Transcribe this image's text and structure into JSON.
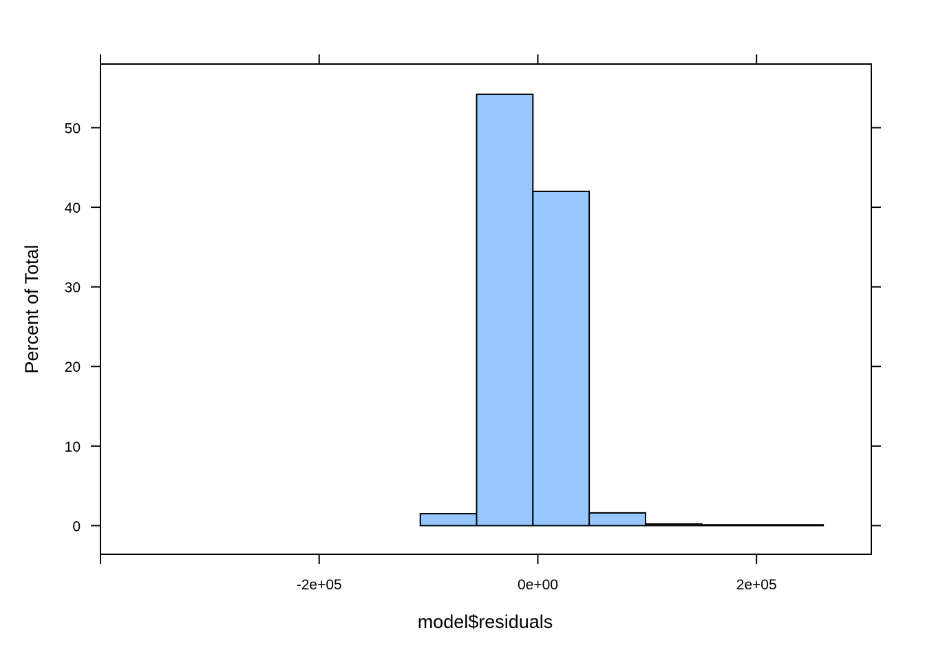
{
  "chart_data": {
    "type": "bar",
    "title": "",
    "xlabel": "model$residuals",
    "ylabel": "Percent of Total",
    "xlim": [
      -400000,
      305000
    ],
    "ylim": [
      -3.6,
      58
    ],
    "x_ticks": [
      {
        "value": -400000,
        "label": ""
      },
      {
        "value": -200000,
        "label": "-2e+05"
      },
      {
        "value": 0,
        "label": "0e+00"
      },
      {
        "value": 200000,
        "label": "2e+05"
      }
    ],
    "y_ticks": [
      {
        "value": 0,
        "label": "0"
      },
      {
        "value": 10,
        "label": "10"
      },
      {
        "value": 20,
        "label": "20"
      },
      {
        "value": 30,
        "label": "30"
      },
      {
        "value": 40,
        "label": "40"
      },
      {
        "value": 50,
        "label": "50"
      }
    ],
    "bar_fill": "#96c7ff",
    "bar_stroke": "#000000",
    "bins": [
      {
        "x0": -365000,
        "x1": -313500,
        "value": 0
      },
      {
        "x0": -313500,
        "x1": -262000,
        "value": 0
      },
      {
        "x0": -262000,
        "x1": -210500,
        "value": 0
      },
      {
        "x0": -210500,
        "x1": -159000,
        "value": 0
      },
      {
        "x0": -159000,
        "x1": -107500,
        "value": 0
      },
      {
        "x0": -107500,
        "x1": -56000,
        "value": 1.5
      },
      {
        "x0": -56000,
        "x1": -4500,
        "value": 54.2
      },
      {
        "x0": -4500,
        "x1": 47000,
        "value": 42.0
      },
      {
        "x0": 47000,
        "x1": 98500,
        "value": 1.6
      },
      {
        "x0": 98500,
        "x1": 150000,
        "value": 0.2
      },
      {
        "x0": 150000,
        "x1": 201500,
        "value": 0.1
      },
      {
        "x0": 201500,
        "x1": 261000,
        "value": 0.1
      }
    ],
    "grid": false,
    "legend": "none"
  }
}
